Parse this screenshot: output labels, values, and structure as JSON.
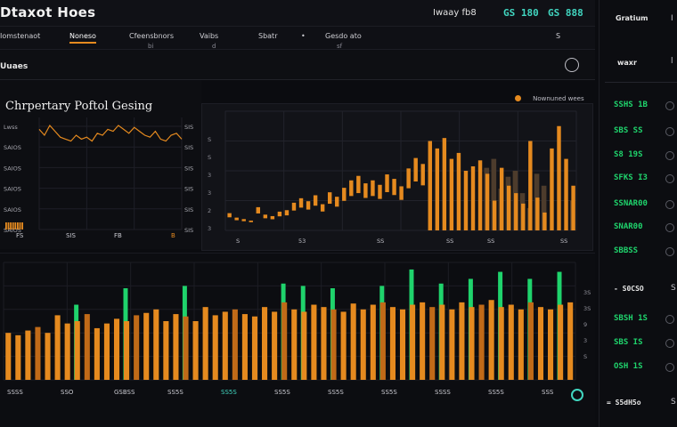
{
  "header": {
    "title": "Dtaxot Hoes",
    "tag": "Iwaay fb8",
    "value_1": "GS 180",
    "value_2": "GS 888"
  },
  "tabs": [
    {
      "label": "Iomstenaot",
      "sub": ""
    },
    {
      "label": "Noneso",
      "sub": ""
    },
    {
      "label": "Cfeensbnors",
      "sub": "bi"
    },
    {
      "label": "Vaibs",
      "sub": "d"
    },
    {
      "label": "Sbatr",
      "sub": ""
    },
    {
      "label": "Gesdo ato",
      "sub": "sf"
    },
    {
      "label": "S",
      "sub": ""
    }
  ],
  "subheader": {
    "label": "Uuaes"
  },
  "upper_left": {
    "title": "Chrpertary Poftol Gesing"
  },
  "legend": {
    "label": "Nownuned wees"
  },
  "sidebar": {
    "header": "Gratium",
    "header_glyph": "I",
    "subheader": "waxr",
    "subheader_glyph": "l",
    "rows_top": [
      "SSHS 1B",
      "SBS SS",
      "S8 19S",
      "SFKS I3",
      "SSNAR00",
      "SNAR00",
      "SBBSS"
    ],
    "mid_label": "- S0CSO",
    "mid_glyph": "S",
    "rows_bottom": [
      "SBSH 1S",
      "SBS IS",
      "OSH 1S"
    ],
    "footer": "= S5dH5o",
    "footer_glyph": "S"
  },
  "chart_data": [
    {
      "type": "line",
      "title": "Chrpertary Poftol Gesing",
      "ytick_labels_left": [
        "Lwss",
        "SAIOS",
        "SAIOS",
        "SAIOS",
        "SAIOS",
        "SAIOS"
      ],
      "ytick_labels_right": [
        "SIS",
        "SIS",
        "SIS",
        "SIS",
        "SIS",
        "SIS"
      ],
      "xtick_labels": [
        "FS",
        "SIS",
        "FB",
        "B"
      ],
      "values": [
        50,
        47,
        52,
        49,
        46,
        45,
        44,
        47,
        45,
        46,
        44,
        48,
        47,
        50,
        49,
        52,
        50,
        48,
        51,
        49,
        47,
        46,
        49,
        45,
        44,
        47,
        48,
        45
      ]
    },
    {
      "type": "bar",
      "ytick_labels": [
        "S",
        "S",
        "3",
        "3",
        "2",
        "3"
      ],
      "xtick_labels": [
        "S",
        "53",
        "SS",
        "SS",
        "SS",
        "SS"
      ],
      "series": [
        {
          "color": "#e58a1f",
          "values": [
            8,
            5,
            4,
            3,
            12,
            7,
            6,
            9,
            10,
            15,
            18,
            16,
            20,
            14,
            22,
            19,
            25,
            30,
            33,
            28,
            30,
            27,
            34,
            31,
            26,
            38,
            45,
            41,
            60,
            55,
            62,
            48,
            52,
            40,
            43,
            47,
            38,
            20,
            42,
            30,
            25,
            18,
            60,
            22,
            12,
            55,
            70,
            48,
            30
          ]
        },
        {
          "color": "#4a3a2a",
          "values": [
            0,
            0,
            0,
            0,
            0,
            0,
            0,
            0,
            0,
            0,
            0,
            0,
            0,
            0,
            0,
            0,
            0,
            0,
            0,
            0,
            0,
            0,
            0,
            0,
            0,
            0,
            0,
            0,
            0,
            0,
            0,
            0,
            0,
            0,
            0,
            0,
            42,
            48,
            28,
            36,
            40,
            25,
            15,
            38,
            30,
            0,
            0,
            0,
            20
          ]
        }
      ]
    },
    {
      "type": "bar",
      "xtick_labels": [
        "SSSS",
        "SSO",
        "GSBSS",
        "SS5S",
        "SS5S",
        "SS5S",
        "SS5S",
        "SS5S",
        "SSSS",
        "SS5S",
        "SSS"
      ],
      "ytick_labels": [
        "3S",
        "3S",
        "9",
        "3",
        "S"
      ],
      "series": [
        {
          "color": "#e58a1f",
          "values": [
            40,
            38,
            42,
            45,
            40,
            55,
            48,
            50,
            56,
            44,
            48,
            52,
            50,
            55,
            57,
            60,
            50,
            56,
            54,
            50,
            62,
            55,
            58,
            60,
            56,
            54,
            62,
            58,
            66,
            60,
            58,
            64,
            62,
            60,
            58,
            65,
            60,
            64,
            66,
            62,
            60,
            64,
            66,
            62,
            64,
            60,
            66,
            62,
            64,
            68,
            62,
            64,
            60,
            66,
            62,
            60,
            64,
            66
          ]
        },
        {
          "color": "#1fd36c",
          "values": [
            0,
            0,
            0,
            0,
            0,
            0,
            0,
            64,
            0,
            0,
            0,
            0,
            78,
            0,
            0,
            0,
            0,
            0,
            80,
            0,
            0,
            0,
            0,
            0,
            0,
            0,
            0,
            0,
            82,
            0,
            80,
            0,
            0,
            78,
            0,
            0,
            0,
            0,
            80,
            0,
            0,
            94,
            0,
            0,
            82,
            0,
            0,
            86,
            0,
            0,
            92,
            0,
            0,
            86,
            0,
            0,
            92,
            0
          ]
        }
      ]
    }
  ]
}
